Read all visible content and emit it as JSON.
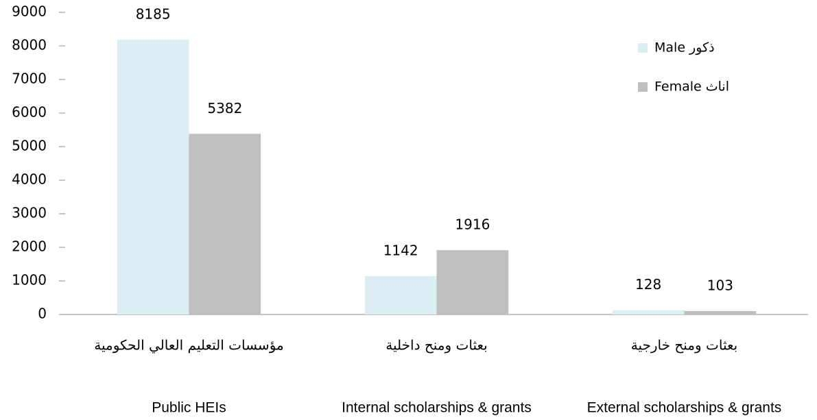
{
  "chart_data": {
    "type": "bar",
    "categories": [
      "Public HEIs",
      "Internal scholarships & grants",
      "External scholarships & grants"
    ],
    "categories_ar": [
      "مؤسسات التعليم العالي الحكومية",
      "بعثات ومنح داخلية",
      "بعثات ومنح خارجية"
    ],
    "series": [
      {
        "name": "Male ذكور",
        "color": "#daeef3",
        "values": [
          8185,
          1142,
          128
        ]
      },
      {
        "name": "Female اناث",
        "color": "#bfbfbf",
        "values": [
          5382,
          1916,
          103
        ]
      }
    ],
    "ylim": [
      0,
      9000
    ],
    "yticks": [
      0,
      1000,
      2000,
      3000,
      4000,
      5000,
      6000,
      7000,
      8000,
      9000
    ],
    "legend": "upper right",
    "grid": false
  }
}
